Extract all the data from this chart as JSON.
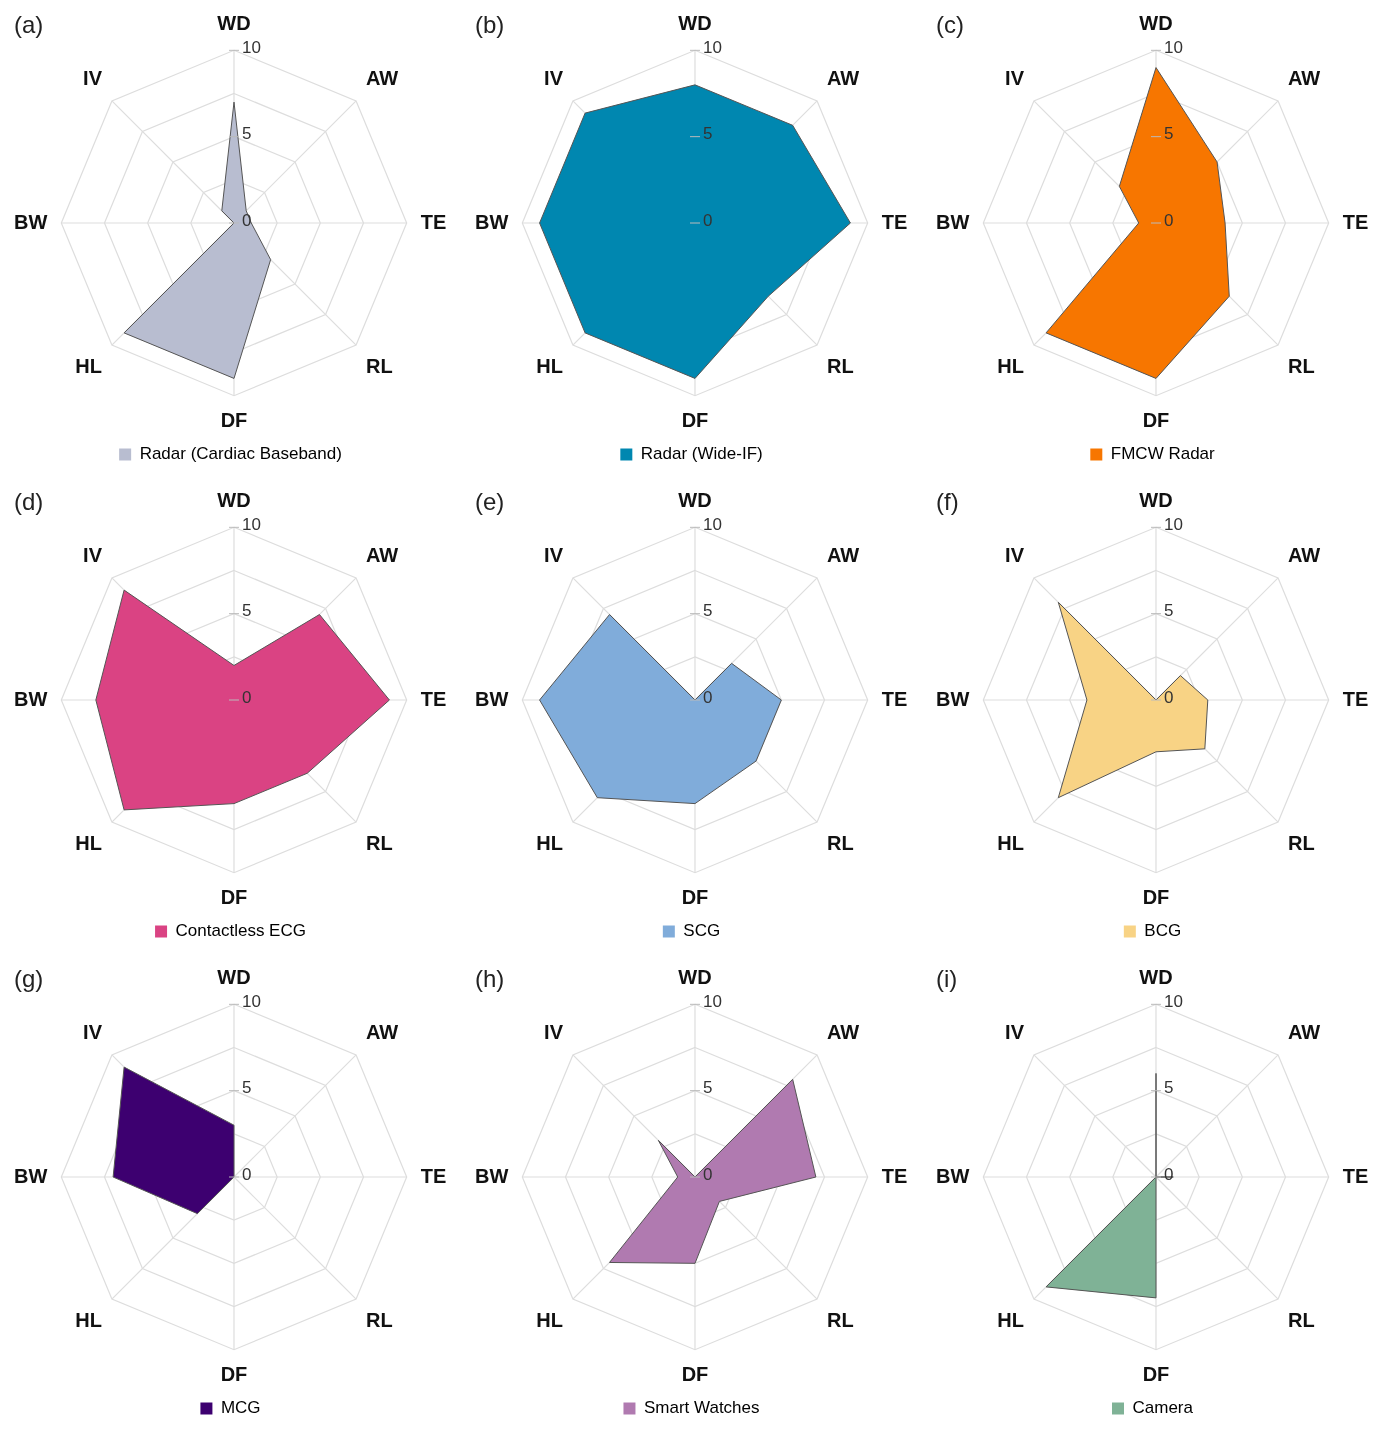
{
  "chart_data": [
    {
      "type": "radar",
      "annotations": [
        "(a)"
      ],
      "categories": [
        "WD",
        "AW",
        "TE",
        "RL",
        "DF",
        "HL",
        "BW",
        "IV"
      ],
      "ylim": [
        0,
        10
      ],
      "yticks": [
        0,
        5,
        10
      ],
      "grid": true,
      "legend": "bottom",
      "marker": "none",
      "series": [
        {
          "name": "Radar (Cardiac Baseband)",
          "color": "#b8bdd0",
          "values": [
            7,
            1,
            1,
            3,
            9,
            9,
            0,
            1
          ]
        }
      ]
    },
    {
      "type": "radar",
      "annotations": [
        "(b)"
      ],
      "categories": [
        "WD",
        "AW",
        "TE",
        "RL",
        "DF",
        "HL",
        "BW",
        "IV"
      ],
      "ylim": [
        0,
        10
      ],
      "yticks": [
        0,
        5,
        10
      ],
      "grid": true,
      "legend": "bottom",
      "marker": "none",
      "series": [
        {
          "name": "Radar (Wide-IF)",
          "color": "#0087b0",
          "values": [
            8,
            8,
            9,
            6,
            9,
            9,
            9,
            9
          ]
        }
      ]
    },
    {
      "type": "radar",
      "annotations": [
        "(c)"
      ],
      "categories": [
        "WD",
        "AW",
        "TE",
        "RL",
        "DF",
        "HL",
        "BW",
        "IV"
      ],
      "ylim": [
        0,
        10
      ],
      "yticks": [
        0,
        5,
        10
      ],
      "grid": true,
      "legend": "bottom",
      "marker": "none",
      "series": [
        {
          "name": "FMCW Radar",
          "color": "#f77600",
          "values": [
            9,
            5,
            4,
            6,
            9,
            9,
            1,
            3
          ]
        }
      ]
    },
    {
      "type": "radar",
      "annotations": [
        "(d)"
      ],
      "categories": [
        "WD",
        "AW",
        "TE",
        "RL",
        "DF",
        "HL",
        "BW",
        "IV"
      ],
      "ylim": [
        0,
        10
      ],
      "yticks": [
        0,
        5,
        10
      ],
      "grid": true,
      "legend": "bottom",
      "marker": "none",
      "series": [
        {
          "name": "Contactless ECG",
          "color": "#da4383",
          "values": [
            2,
            7,
            9,
            6,
            6,
            9,
            8,
            9
          ]
        }
      ]
    },
    {
      "type": "radar",
      "annotations": [
        "(e)"
      ],
      "categories": [
        "WD",
        "AW",
        "TE",
        "RL",
        "DF",
        "HL",
        "BW",
        "IV"
      ],
      "ylim": [
        0,
        10
      ],
      "yticks": [
        0,
        5,
        10
      ],
      "grid": true,
      "legend": "bottom",
      "marker": "none",
      "series": [
        {
          "name": "SCG",
          "color": "#80acda",
          "values": [
            0,
            3,
            5,
            5,
            6,
            8,
            9,
            7
          ]
        }
      ]
    },
    {
      "type": "radar",
      "annotations": [
        "(f)"
      ],
      "categories": [
        "WD",
        "AW",
        "TE",
        "RL",
        "DF",
        "HL",
        "BW",
        "IV"
      ],
      "ylim": [
        0,
        10
      ],
      "yticks": [
        0,
        5,
        10
      ],
      "grid": true,
      "legend": "bottom",
      "marker": "none",
      "series": [
        {
          "name": "BCG",
          "color": "#f8d385",
          "values": [
            0,
            2,
            3,
            4,
            3,
            8,
            4,
            8
          ]
        }
      ]
    },
    {
      "type": "radar",
      "annotations": [
        "(g)"
      ],
      "categories": [
        "WD",
        "AW",
        "TE",
        "RL",
        "DF",
        "HL",
        "BW",
        "IV"
      ],
      "ylim": [
        0,
        10
      ],
      "yticks": [
        0,
        5,
        10
      ],
      "grid": true,
      "legend": "bottom",
      "marker": "none",
      "series": [
        {
          "name": "MCG",
          "color": "#3d0070",
          "values": [
            3,
            0,
            0,
            0,
            0,
            3,
            7,
            9
          ]
        }
      ]
    },
    {
      "type": "radar",
      "annotations": [
        "(h)"
      ],
      "categories": [
        "WD",
        "AW",
        "TE",
        "RL",
        "DF",
        "HL",
        "BW",
        "IV"
      ],
      "ylim": [
        0,
        10
      ],
      "yticks": [
        0,
        5,
        10
      ],
      "grid": true,
      "legend": "bottom",
      "marker": "none",
      "series": [
        {
          "name": "Smart Watches",
          "color": "#b07ab0",
          "values": [
            0,
            8,
            7,
            2,
            5,
            7,
            1,
            3
          ]
        }
      ]
    },
    {
      "type": "radar",
      "annotations": [
        "(i)"
      ],
      "categories": [
        "WD",
        "AW",
        "TE",
        "RL",
        "DF",
        "HL",
        "BW",
        "IV"
      ],
      "ylim": [
        0,
        10
      ],
      "yticks": [
        0,
        5,
        10
      ],
      "grid": true,
      "legend": "bottom",
      "marker": "none",
      "series": [
        {
          "name": "Camera",
          "color": "#7fb296",
          "values": [
            6,
            0,
            1,
            0,
            7,
            9,
            0,
            0
          ]
        }
      ]
    }
  ]
}
